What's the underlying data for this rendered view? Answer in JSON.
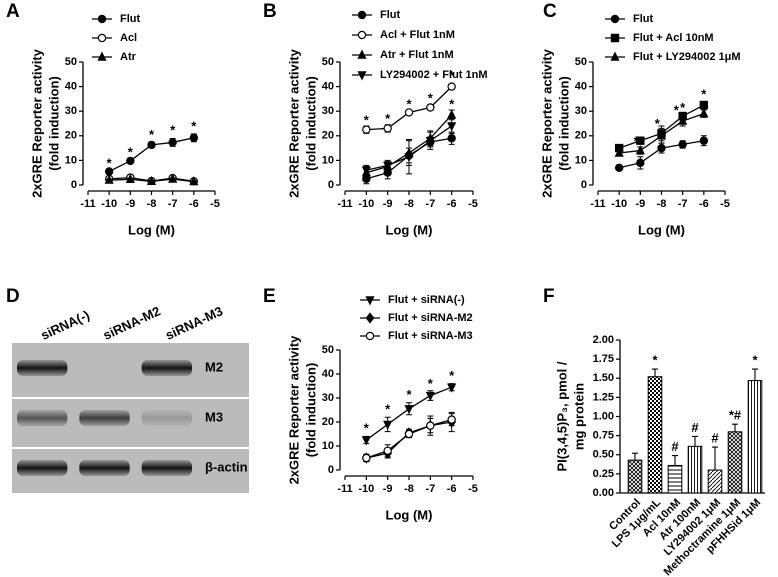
{
  "chart_data": [
    {
      "type": "line",
      "label": "A",
      "xlabel": "Log (M)",
      "ylabel": [
        "2xGRE Reporter activity",
        "(fold induction)"
      ],
      "x": [
        -10,
        -9,
        -8,
        -7,
        -6
      ],
      "xlim": [
        -11,
        -5
      ],
      "xticks": [
        -11,
        -10,
        -9,
        -8,
        -7,
        -6,
        -5
      ],
      "ylim": [
        0,
        50
      ],
      "yticks": [
        0,
        10,
        20,
        30,
        40,
        50
      ],
      "color": "#000",
      "series": [
        {
          "name": "Flut",
          "marker": "circle-filled",
          "values": [
            5.5,
            9.8,
            16.3,
            17.3,
            19.2
          ],
          "errors": [
            0.8,
            0.9,
            1.0,
            1.6,
            1.6
          ]
        },
        {
          "name": "Acl",
          "marker": "circle-open",
          "values": [
            2.5,
            3.0,
            1.6,
            2.8,
            1.5
          ],
          "errors": [
            0.5,
            0.6,
            0.4,
            0.5,
            0.4
          ]
        },
        {
          "name": "Atr",
          "marker": "triangle-up",
          "values": [
            2.0,
            2.3,
            1.5,
            2.4,
            1.4
          ],
          "errors": [
            0.4,
            0.5,
            0.4,
            0.5,
            0.3
          ]
        }
      ],
      "annotations": [
        {
          "text": "*",
          "x": -10,
          "y": 8.5
        },
        {
          "text": "*",
          "x": -9,
          "y": 13
        },
        {
          "text": "*",
          "x": -8,
          "y": 20
        },
        {
          "text": "*",
          "x": -7,
          "y": 22
        },
        {
          "text": "*",
          "x": -6,
          "y": 23.5
        }
      ]
    },
    {
      "type": "line",
      "label": "B",
      "xlabel": "Log (M)",
      "ylabel": [
        "2xGRE Reporter activity",
        "(fold induction)"
      ],
      "x": [
        -10,
        -9,
        -8,
        -7,
        -6
      ],
      "xlim": [
        -11,
        -5
      ],
      "xticks": [
        -11,
        -10,
        -9,
        -8,
        -7,
        -6,
        -5
      ],
      "ylim": [
        0,
        50
      ],
      "yticks": [
        0,
        10,
        20,
        30,
        40,
        50
      ],
      "color": "#000",
      "series": [
        {
          "name": "Flut",
          "marker": "circle-filled",
          "values": [
            2.5,
            5.0,
            12.0,
            17.5,
            19.0
          ],
          "errors": [
            2.0,
            2.5,
            3.0,
            2.0,
            2.5
          ]
        },
        {
          "name": "Acl + Flut 1nM",
          "marker": "circle-open",
          "values": [
            22.5,
            23.0,
            29.5,
            31.5,
            40.0
          ],
          "errors": [
            1.5,
            1.5,
            1.0,
            1.0,
            1.0
          ]
        },
        {
          "name": "Atr + Flut 1nM",
          "marker": "triangle-up",
          "values": [
            5.0,
            7.5,
            13.0,
            19.0,
            28.5
          ],
          "errors": [
            2.5,
            2.0,
            5.0,
            3.0,
            2.0
          ]
        },
        {
          "name": "LY294002 + Flut 1nM",
          "marker": "triangle-down",
          "values": [
            6.0,
            8.0,
            11.5,
            18.0,
            24.0
          ],
          "errors": [
            2.0,
            2.0,
            7.0,
            3.5,
            3.0
          ]
        }
      ],
      "annotations": [
        {
          "text": "*",
          "x": -10,
          "y": 26
        },
        {
          "text": "*",
          "x": -9,
          "y": 26.5
        },
        {
          "text": "*",
          "x": -8,
          "y": 32.5
        },
        {
          "text": "*",
          "x": -7,
          "y": 35
        },
        {
          "text": "*",
          "x": -6,
          "y": 44
        },
        {
          "text": "*",
          "x": -6,
          "y": 32.5
        }
      ]
    },
    {
      "type": "line",
      "label": "C",
      "xlabel": "Log (M)",
      "ylabel": [
        "2xGRE Reporter activity",
        "(fold induction)"
      ],
      "x": [
        -10,
        -9,
        -8,
        -7,
        -6
      ],
      "xlim": [
        -11,
        -5
      ],
      "xticks": [
        -11,
        -10,
        -9,
        -8,
        -7,
        -6,
        -5
      ],
      "ylim": [
        0,
        50
      ],
      "yticks": [
        0,
        10,
        20,
        30,
        40,
        50
      ],
      "color": "#000",
      "series": [
        {
          "name": "Flut",
          "marker": "circle-filled",
          "values": [
            7.0,
            9.0,
            15.0,
            16.5,
            18.0
          ],
          "errors": [
            0.8,
            2.5,
            2.0,
            1.5,
            2.0
          ]
        },
        {
          "name": "Flut + Acl 10nM",
          "marker": "square",
          "values": [
            15.0,
            18.0,
            21.0,
            28.0,
            32.5
          ],
          "errors": [
            1.0,
            1.2,
            3.0,
            1.5,
            1.5
          ]
        },
        {
          "name": "Flut + LY294002 1μM",
          "marker": "triangle-up",
          "values": [
            13.0,
            14.0,
            20.0,
            26.0,
            29.0
          ],
          "errors": [
            1.0,
            1.5,
            3.0,
            2.0,
            1.5
          ]
        }
      ],
      "annotations": [
        {
          "text": "*",
          "x": -9.2,
          "y": 17.5
        },
        {
          "text": "*",
          "x": -8.2,
          "y": 24.5
        },
        {
          "text": "*",
          "x": -7.3,
          "y": 30
        },
        {
          "text": "*",
          "x": -7,
          "y": 31
        },
        {
          "text": "*",
          "x": -6,
          "y": 36.5
        },
        {
          "text": "*",
          "x": -6,
          "y": 31.5
        }
      ]
    },
    {
      "type": "blot",
      "label": "D",
      "lanes": [
        "siRNA(-)",
        "siRNA-M2",
        "siRNA-M3"
      ],
      "rows": [
        "M2",
        "M3",
        "β-actin"
      ]
    },
    {
      "type": "line",
      "label": "E",
      "xlabel": "Log (M)",
      "ylabel": [
        "2xGRE Reporter activity",
        "(fold induction)"
      ],
      "x": [
        -10,
        -9,
        -8,
        -7,
        -6
      ],
      "xlim": [
        -11,
        -5
      ],
      "xticks": [
        -11,
        -10,
        -9,
        -8,
        -7,
        -6,
        -5
      ],
      "ylim": [
        0,
        50
      ],
      "yticks": [
        0,
        10,
        20,
        30,
        40,
        50
      ],
      "color": "#000",
      "series": [
        {
          "name": "Flut + siRNA(-)",
          "marker": "triangle-down",
          "values": [
            12.5,
            19.0,
            25.5,
            31.0,
            34.5
          ],
          "errors": [
            1.5,
            3.0,
            2.5,
            2.0,
            1.5
          ]
        },
        {
          "name": "Flut + siRNA-M2",
          "marker": "diamond",
          "values": [
            5.0,
            7.0,
            15.5,
            18.5,
            20.0
          ],
          "errors": [
            1.5,
            2.0,
            1.5,
            4.0,
            4.0
          ]
        },
        {
          "name": "Flut + siRNA-M3",
          "marker": "circle-open",
          "values": [
            5.0,
            8.0,
            15.0,
            18.5,
            21.0
          ],
          "errors": [
            1.5,
            2.5,
            1.5,
            3.0,
            2.5
          ]
        }
      ],
      "annotations": [
        {
          "text": "*",
          "x": -10,
          "y": 17
        },
        {
          "text": "*",
          "x": -9,
          "y": 25
        },
        {
          "text": "*",
          "x": -8,
          "y": 31
        },
        {
          "text": "*",
          "x": -7,
          "y": 35.5
        },
        {
          "text": "*",
          "x": -6,
          "y": 39
        }
      ]
    },
    {
      "type": "bar",
      "label": "F",
      "ylabel": [
        "PI(3,4,5)P₃, pmol /",
        "mg protein"
      ],
      "categories": [
        "Control",
        "LPS 1μg/mL",
        "Acl 10nM",
        "Atr 100nM",
        "LY294002 1μM",
        "Methoctramine 1μM",
        "pFHHSid 1μM"
      ],
      "values": [
        0.43,
        1.52,
        0.36,
        0.61,
        0.3,
        0.8,
        1.47
      ],
      "errors": [
        0.09,
        0.1,
        0.13,
        0.13,
        0.3,
        0.1,
        0.15
      ],
      "patterns": [
        "crosshatch",
        "checker",
        "hlines",
        "vlines",
        "diagonal",
        "crosshatch",
        "vlines"
      ],
      "annotations": [
        null,
        "*",
        "#",
        "#",
        "#",
        "*#",
        "*"
      ],
      "ylim": [
        0,
        2
      ],
      "yticks": [
        {
          "value": 0,
          "label": "0.00"
        },
        {
          "value": 0.25,
          "label": "0.25"
        },
        {
          "value": 0.5,
          "label": "0.50"
        },
        {
          "value": 0.75,
          "label": "0.75"
        },
        {
          "value": 1,
          "label": "1.00"
        },
        {
          "value": 1.25,
          "label": "1.25"
        },
        {
          "value": 1.5,
          "label": "1.50"
        },
        {
          "value": 1.75,
          "label": "1.75"
        },
        {
          "value": 2,
          "label": "2.00"
        }
      ]
    }
  ]
}
